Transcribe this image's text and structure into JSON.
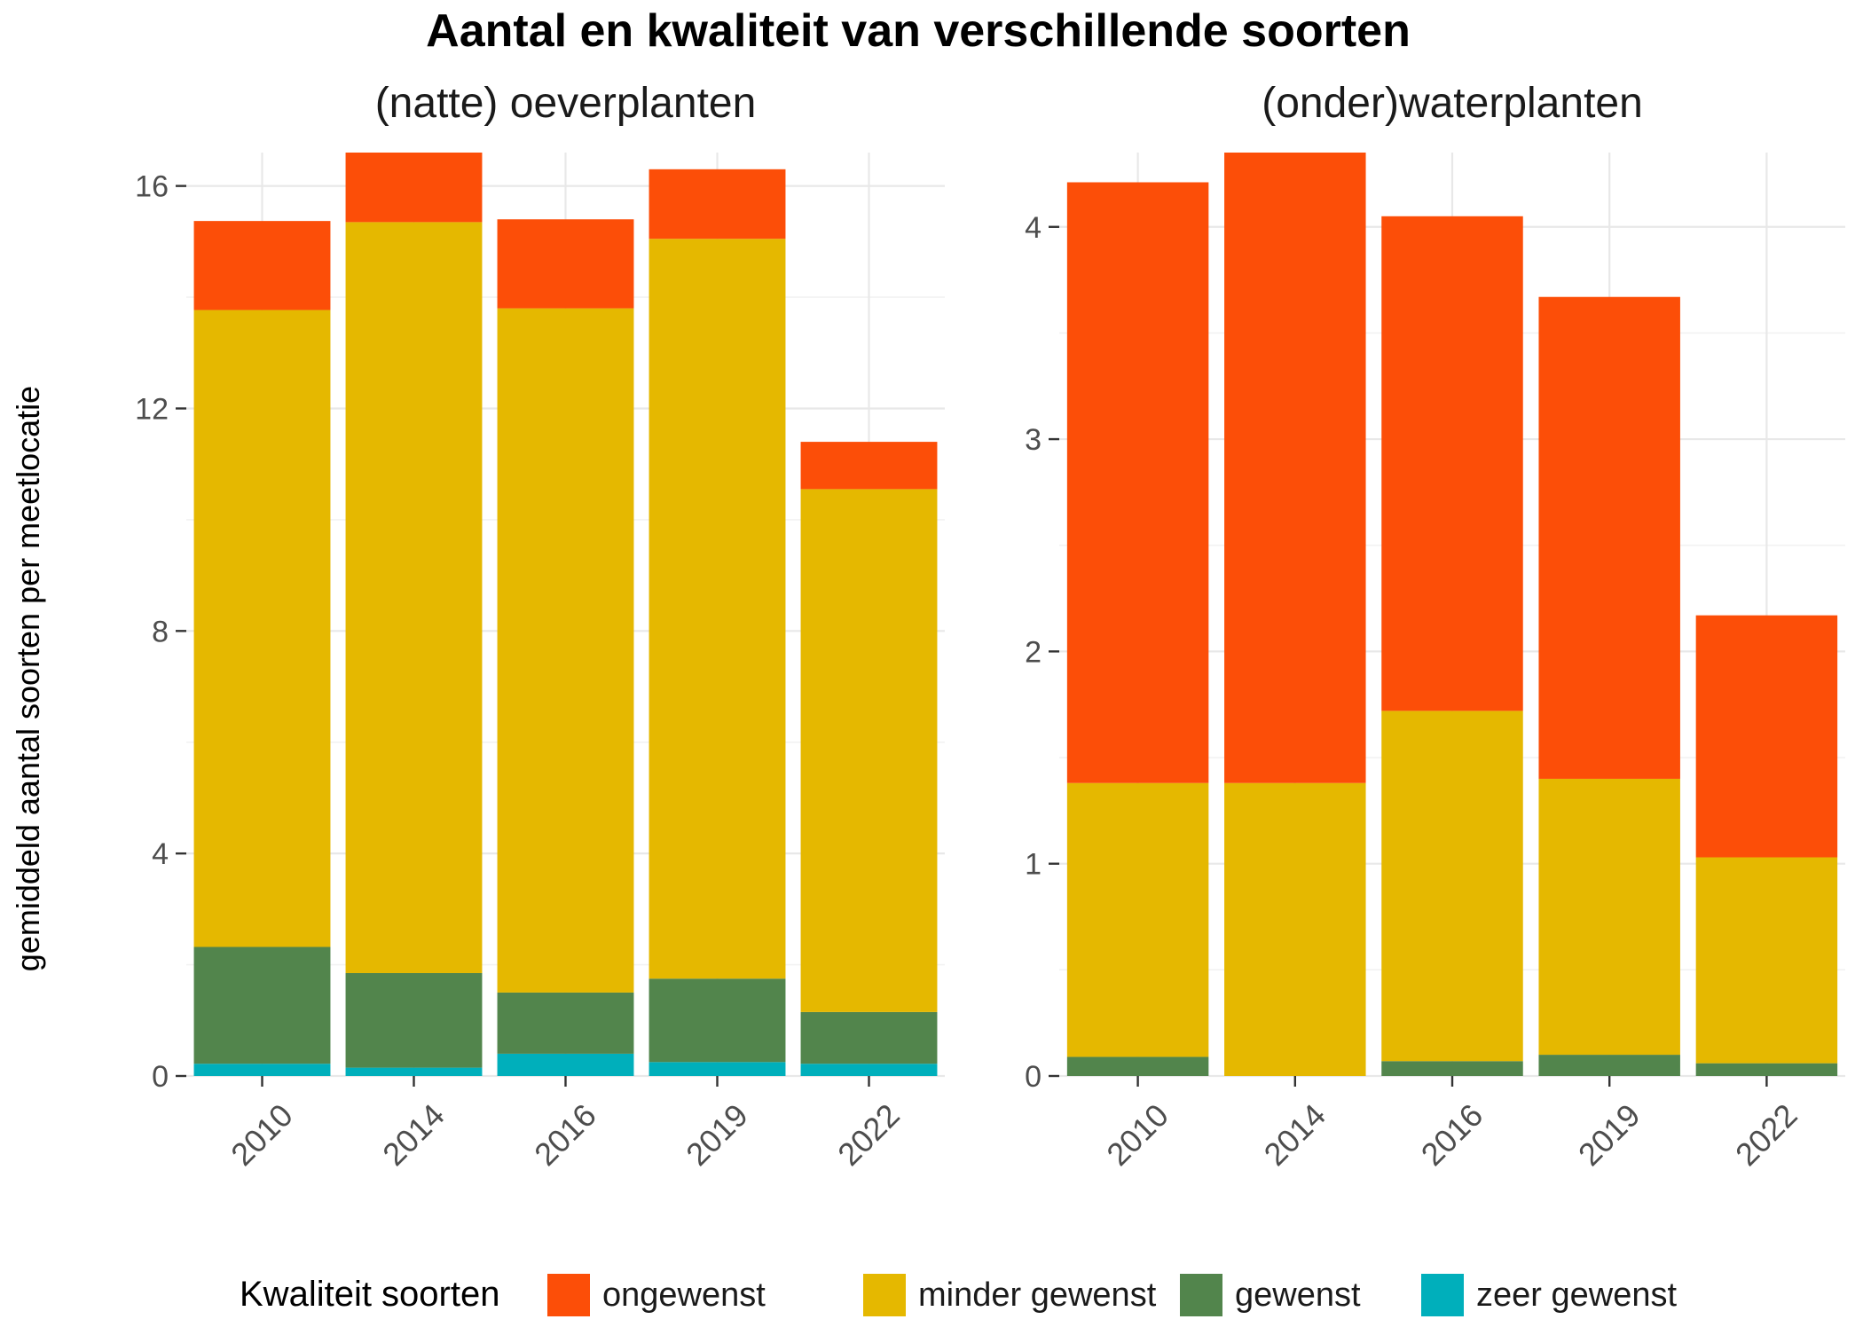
{
  "title": "Aantal en kwaliteit van verschillende soorten",
  "ylabel": "gemiddeld aantal soorten per meetlocatie",
  "legend": {
    "title": "Kwaliteit soorten",
    "position": "bottom",
    "items": [
      {
        "key": "ongewenst",
        "label": "ongewenst",
        "color": "#FC4E08"
      },
      {
        "key": "minder_gewenst",
        "label": "minder gewenst",
        "color": "#E5B800"
      },
      {
        "key": "gewenst",
        "label": "gewenst",
        "color": "#52854C"
      },
      {
        "key": "zeer_gewenst",
        "label": "zeer gewenst",
        "color": "#00AFBB"
      }
    ]
  },
  "chart_data": [
    {
      "type": "bar",
      "stacked": true,
      "title": "(natte) oeverplanten",
      "categories": [
        "2010",
        "2014",
        "2016",
        "2019",
        "2022"
      ],
      "ylim": [
        0,
        16.6
      ],
      "yticks": [
        0,
        4,
        8,
        12,
        16
      ],
      "grid": true,
      "series": [
        {
          "name": "zeer gewenst",
          "values": [
            0.22,
            0.15,
            0.4,
            0.25,
            0.22
          ]
        },
        {
          "name": "gewenst",
          "values": [
            2.1,
            1.7,
            1.1,
            1.5,
            0.93
          ]
        },
        {
          "name": "minder gewenst",
          "values": [
            11.45,
            13.5,
            12.3,
            13.3,
            9.4
          ]
        },
        {
          "name": "ongewenst",
          "values": [
            1.6,
            1.25,
            1.6,
            1.25,
            0.85
          ]
        }
      ]
    },
    {
      "type": "bar",
      "stacked": true,
      "title": "(onder)waterplanten",
      "categories": [
        "2010",
        "2014",
        "2016",
        "2019",
        "2022"
      ],
      "ylim": [
        0,
        4.35
      ],
      "yticks": [
        0,
        1,
        2,
        3,
        4
      ],
      "grid": true,
      "series": [
        {
          "name": "zeer gewenst",
          "values": [
            0,
            0,
            0,
            0,
            0
          ]
        },
        {
          "name": "gewenst",
          "values": [
            0.09,
            0,
            0.07,
            0.1,
            0.06
          ]
        },
        {
          "name": "minder gewenst",
          "values": [
            1.29,
            1.38,
            1.65,
            1.3,
            0.97
          ]
        },
        {
          "name": "ongewenst",
          "values": [
            2.83,
            2.97,
            2.33,
            2.27,
            1.14
          ]
        }
      ]
    }
  ]
}
